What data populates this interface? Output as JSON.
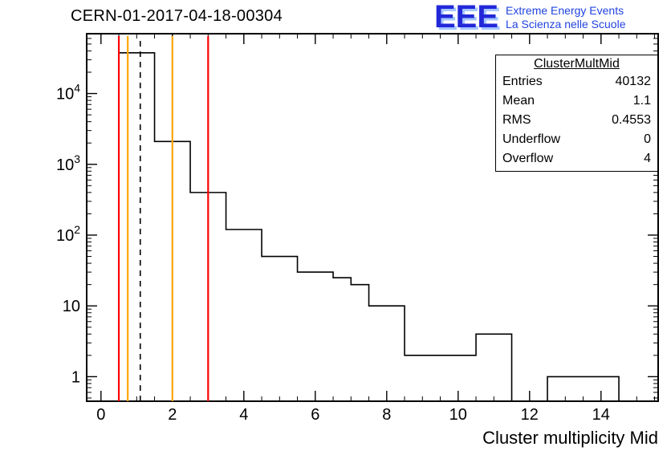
{
  "header": {
    "title": "CERN-01-2017-04-18-00304"
  },
  "logo": {
    "text": "EEE",
    "line1": "Extreme Energy Events",
    "line2": "La Scienza nelle Scuole",
    "color": "#2228d8",
    "shadow_color": "#a5c6ff"
  },
  "stats_box": {
    "title": "ClusterMultMid",
    "rows": [
      {
        "label": "Entries",
        "value": "40132"
      },
      {
        "label": "Mean",
        "value": "1.1"
      },
      {
        "label": "RMS",
        "value": "0.4553"
      },
      {
        "label": "Underflow",
        "value": "0"
      },
      {
        "label": "Overflow",
        "value": "4"
      }
    ]
  },
  "chart_data": {
    "type": "bar",
    "subtype": "step-histogram",
    "title": "CERN-01-2017-04-18-00304",
    "xlabel": "Cluster multiplicity Mid",
    "ylabel": "",
    "y_scale": "log",
    "x_range": [
      -0.4,
      15.6
    ],
    "y_range": [
      0.45,
      70000
    ],
    "x_major_ticks": [
      0,
      2,
      4,
      6,
      8,
      10,
      12,
      14
    ],
    "x_minor_step": 0.5,
    "y_major_ticks": [
      {
        "value": 1,
        "label": "1"
      },
      {
        "value": 10,
        "label": "10"
      },
      {
        "value": 100,
        "label": "10^2"
      },
      {
        "value": 1000,
        "label": "10^3"
      },
      {
        "value": 10000,
        "label": "10^4"
      }
    ],
    "bins": [
      [
        0.5,
        1.5,
        37600
      ],
      [
        1.5,
        2.5,
        2100
      ],
      [
        2.5,
        3.5,
        400
      ],
      [
        3.5,
        4.5,
        120
      ],
      [
        4.5,
        5.5,
        50
      ],
      [
        5.5,
        6.5,
        30
      ],
      [
        6.5,
        7.0,
        25
      ],
      [
        7.0,
        7.5,
        20
      ],
      [
        7.5,
        8.5,
        10
      ],
      [
        8.5,
        10.5,
        2
      ],
      [
        10.5,
        11.5,
        4
      ],
      [
        11.5,
        12.5,
        0
      ],
      [
        12.5,
        14.5,
        1
      ],
      [
        14.5,
        15.6,
        0
      ]
    ],
    "line_color": "#000000",
    "marker_lines": [
      {
        "x": 0.5,
        "color": "#ff0000",
        "style": "solid"
      },
      {
        "x": 0.75,
        "color": "#ffa500",
        "style": "solid"
      },
      {
        "x": 1.1,
        "color": "#000000",
        "style": "dashed"
      },
      {
        "x": 2.0,
        "color": "#ffa500",
        "style": "solid"
      },
      {
        "x": 3.0,
        "color": "#ff0000",
        "style": "solid"
      }
    ],
    "legend": "none",
    "grid": false
  }
}
